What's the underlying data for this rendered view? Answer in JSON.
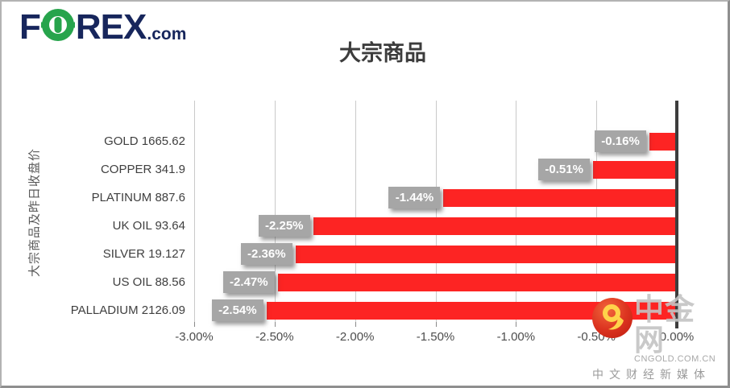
{
  "header": {
    "logo_f": "F",
    "logo_rex": "REX",
    "logo_suffix": ".com",
    "logo_navy": "#17265c",
    "logo_green": "#27a44c"
  },
  "chart_data": {
    "type": "bar",
    "orientation": "horizontal",
    "title": "大宗商品",
    "ylabel": "大宗商品及昨日收盘价",
    "categories": [
      "GOLD",
      "COPPER",
      "PLATINUM",
      "UK OIL",
      "SILVER",
      "US OIL",
      "PALLADIUM"
    ],
    "close_prices": [
      1665.62,
      341.9,
      887.6,
      93.64,
      19.127,
      88.56,
      2126.09
    ],
    "row_labels": [
      "GOLD  1665.62",
      "COPPER  341.9",
      "PLATINUM  887.6",
      "UK OIL  93.64",
      "SILVER  19.127",
      "US OIL  88.56",
      "PALLADIUM  2126.09"
    ],
    "values_pct": [
      -0.16,
      -0.51,
      -1.44,
      -2.25,
      -2.36,
      -2.47,
      -2.54
    ],
    "bar_labels": [
      "-0.16%",
      "-0.51%",
      "-1.44%",
      "-2.25%",
      "-2.36%",
      "-2.47%",
      "-2.54%"
    ],
    "x_ticks": [
      "-3.00%",
      "-2.50%",
      "-2.00%",
      "-1.50%",
      "-1.00%",
      "-0.50%",
      "0.00%"
    ],
    "xlim": [
      -3.0,
      0.0
    ],
    "grid": true,
    "legend": "none",
    "bar_color": "#fd2423",
    "bar_label_bg": "#a6a6a6",
    "gridline_color": "#c9c9c9",
    "axis_line_color": "#3d3d3d"
  },
  "watermark": {
    "name": "中金网",
    "domain": "CNGOLD.COM.CN",
    "tagline": "中文财经新媒体"
  }
}
